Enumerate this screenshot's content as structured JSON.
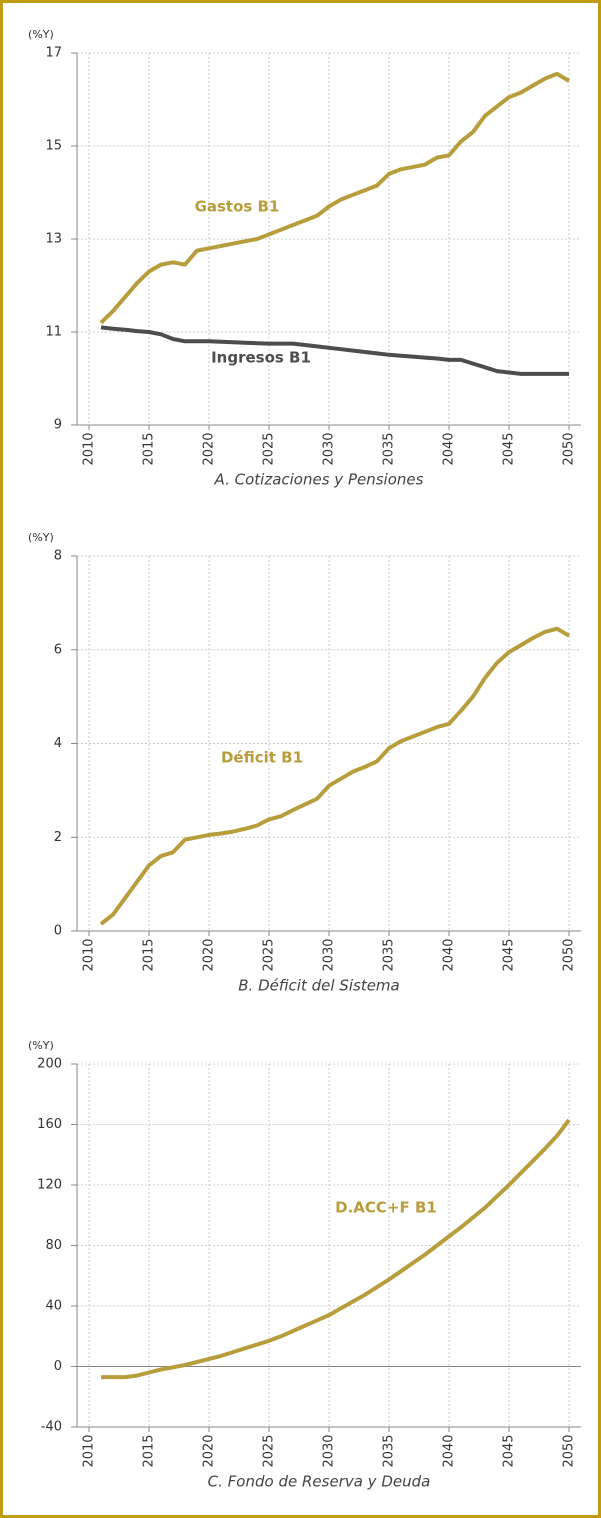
{
  "chart_data": [
    {
      "type": "line",
      "title": "A. Cotizaciones y Pensiones",
      "y_label": "(%Y)",
      "x": [
        2011,
        2012,
        2013,
        2014,
        2015,
        2016,
        2017,
        2018,
        2019,
        2020,
        2021,
        2022,
        2023,
        2024,
        2025,
        2026,
        2027,
        2028,
        2029,
        2030,
        2031,
        2032,
        2033,
        2034,
        2035,
        2036,
        2037,
        2038,
        2039,
        2040,
        2041,
        2042,
        2043,
        2044,
        2045,
        2046,
        2047,
        2048,
        2049,
        2050
      ],
      "series": [
        {
          "name": "Gastos B1",
          "color": "#b89d3c",
          "values": [
            11.2,
            11.45,
            11.75,
            12.05,
            12.3,
            12.45,
            12.5,
            12.45,
            12.75,
            12.8,
            12.85,
            12.9,
            12.95,
            13.0,
            13.1,
            13.2,
            13.3,
            13.4,
            13.5,
            13.7,
            13.85,
            13.95,
            14.05,
            14.15,
            14.4,
            14.5,
            14.55,
            14.6,
            14.75,
            14.8,
            15.1,
            15.3,
            15.65,
            15.85,
            16.05,
            16.15,
            16.3,
            16.45,
            16.55,
            16.4
          ]
        },
        {
          "name": "Ingresos B1",
          "color": "#4d4d4d",
          "values": [
            11.1,
            11.07,
            11.05,
            11.02,
            11.0,
            10.95,
            10.85,
            10.8,
            10.8,
            10.8,
            10.79,
            10.78,
            10.77,
            10.76,
            10.75,
            10.75,
            10.75,
            10.72,
            10.69,
            10.66,
            10.63,
            10.6,
            10.57,
            10.54,
            10.51,
            10.49,
            10.47,
            10.45,
            10.43,
            10.4,
            10.4,
            10.32,
            10.24,
            10.16,
            10.13,
            10.1,
            10.1,
            10.1,
            10.1,
            10.1
          ]
        }
      ],
      "xlim": [
        2009,
        2051
      ],
      "xticks": [
        2010,
        2015,
        2020,
        2025,
        2030,
        2035,
        2040,
        2045,
        2050
      ],
      "ylim": [
        9,
        17
      ],
      "yticks": [
        9,
        11,
        13,
        15,
        17
      ],
      "grid": true
    },
    {
      "type": "line",
      "title": "B. Déficit del Sistema",
      "y_label": "(%Y)",
      "x": [
        2011,
        2012,
        2013,
        2014,
        2015,
        2016,
        2017,
        2018,
        2019,
        2020,
        2021,
        2022,
        2023,
        2024,
        2025,
        2026,
        2027,
        2028,
        2029,
        2030,
        2031,
        2032,
        2033,
        2034,
        2035,
        2036,
        2037,
        2038,
        2039,
        2040,
        2041,
        2042,
        2043,
        2044,
        2045,
        2046,
        2047,
        2048,
        2049,
        2050
      ],
      "series": [
        {
          "name": "Déficit B1",
          "color": "#b89d3c",
          "values": [
            0.15,
            0.35,
            0.7,
            1.05,
            1.4,
            1.6,
            1.68,
            1.95,
            2.0,
            2.05,
            2.08,
            2.12,
            2.18,
            2.25,
            2.38,
            2.45,
            2.58,
            2.7,
            2.82,
            3.1,
            3.25,
            3.4,
            3.5,
            3.62,
            3.9,
            4.05,
            4.15,
            4.25,
            4.35,
            4.42,
            4.7,
            5.0,
            5.4,
            5.72,
            5.95,
            6.1,
            6.25,
            6.38,
            6.45,
            6.3
          ]
        }
      ],
      "xlim": [
        2009,
        2051
      ],
      "xticks": [
        2010,
        2015,
        2020,
        2025,
        2030,
        2035,
        2040,
        2045,
        2050
      ],
      "ylim": [
        0,
        8
      ],
      "yticks": [
        0,
        2,
        4,
        6,
        8
      ],
      "grid": true
    },
    {
      "type": "line",
      "title": "C. Fondo de Reserva y Deuda",
      "y_label": "(%Y)",
      "x": [
        2011,
        2012,
        2013,
        2014,
        2015,
        2016,
        2017,
        2018,
        2019,
        2020,
        2021,
        2022,
        2023,
        2024,
        2025,
        2026,
        2027,
        2028,
        2029,
        2030,
        2031,
        2032,
        2033,
        2034,
        2035,
        2036,
        2037,
        2038,
        2039,
        2040,
        2041,
        2042,
        2043,
        2044,
        2045,
        2046,
        2047,
        2048,
        2049,
        2050
      ],
      "series": [
        {
          "name": "D.ACC+F B1",
          "color": "#b89d3c",
          "values": [
            -7,
            -7,
            -7,
            -6,
            -4,
            -2,
            -0.5,
            1,
            3,
            5,
            7,
            9.5,
            12,
            14.5,
            17,
            20,
            23.5,
            27,
            30.5,
            34,
            38.5,
            43,
            47.5,
            52.5,
            57.5,
            63,
            68.5,
            74,
            80,
            86,
            92,
            98.5,
            105,
            112.5,
            120,
            128,
            136,
            144,
            152.5,
            163
          ]
        }
      ],
      "xlim": [
        2009,
        2051
      ],
      "xticks": [
        2010,
        2015,
        2020,
        2025,
        2030,
        2035,
        2040,
        2045,
        2050
      ],
      "ylim": [
        -40,
        200
      ],
      "yticks": [
        -40,
        0,
        40,
        80,
        120,
        160,
        200
      ],
      "grid": true
    }
  ]
}
